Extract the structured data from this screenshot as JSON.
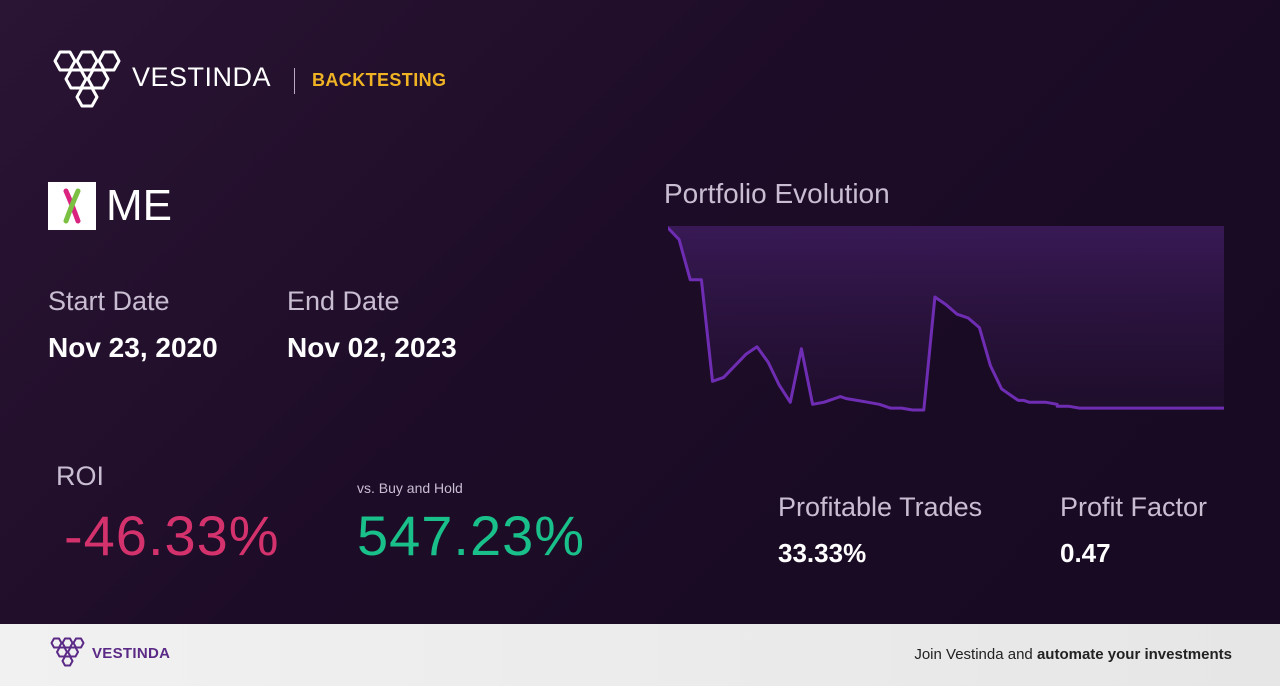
{
  "brand": {
    "name": "VESTINDA",
    "tag": "BACKTESTING"
  },
  "asset": {
    "symbol": "ME",
    "logo_icon": "23andme-logo"
  },
  "dates": {
    "start_label": "Start Date",
    "start_value": "Nov 23, 2020",
    "end_label": "End Date",
    "end_value": "Nov 02, 2023"
  },
  "roi": {
    "label": "ROI",
    "value": "-46.33%",
    "buy_hold_label": "vs. Buy and Hold",
    "buy_hold_value": "547.23%"
  },
  "stats": {
    "profitable_trades_label": "Profitable Trades",
    "profitable_trades_value": "33.33%",
    "profit_factor_label": "Profit Factor",
    "profit_factor_value": "0.47"
  },
  "chart": {
    "title": "Portfolio Evolution"
  },
  "chart_data": {
    "type": "area",
    "title": "Portfolio Evolution",
    "x": [
      0,
      0.02,
      0.04,
      0.06,
      0.08,
      0.1,
      0.12,
      0.14,
      0.16,
      0.18,
      0.2,
      0.22,
      0.24,
      0.26,
      0.28,
      0.29,
      0.3,
      0.31,
      0.32,
      0.34,
      0.36,
      0.38,
      0.4,
      0.42,
      0.44,
      0.46,
      0.48,
      0.5,
      0.52,
      0.54,
      0.56,
      0.58,
      0.6,
      0.61,
      0.62,
      0.63,
      0.64,
      0.65,
      0.66,
      0.68,
      0.7,
      0.7,
      0.72,
      0.74,
      0.76,
      0.78,
      0.8,
      0.82,
      0.84,
      0.86,
      0.88,
      0.9,
      0.92,
      0.94,
      0.96,
      0.98,
      1.0
    ],
    "values": [
      100,
      94,
      73,
      73,
      20,
      22,
      28,
      34,
      38,
      30,
      18,
      9,
      37,
      8,
      9,
      10,
      11,
      12,
      11,
      10,
      9,
      8,
      6,
      6,
      5,
      5,
      64,
      60,
      55,
      53,
      48,
      28,
      16,
      14,
      12,
      10,
      10,
      9,
      9,
      9,
      8,
      7,
      7,
      6,
      6,
      6,
      6,
      6,
      6,
      6,
      6,
      6,
      6,
      6,
      6,
      6,
      6
    ],
    "xlabel": "",
    "ylabel": "",
    "grid": false,
    "color": "#6f2db3"
  },
  "footer": {
    "brand": "VESTINDA",
    "cta_prefix": "Join Vestinda and ",
    "cta_bold": "automate your investments"
  },
  "colors": {
    "accent": "#f0b323",
    "negative": "#d4326c",
    "positive": "#19c08a",
    "line": "#6f2db3"
  }
}
